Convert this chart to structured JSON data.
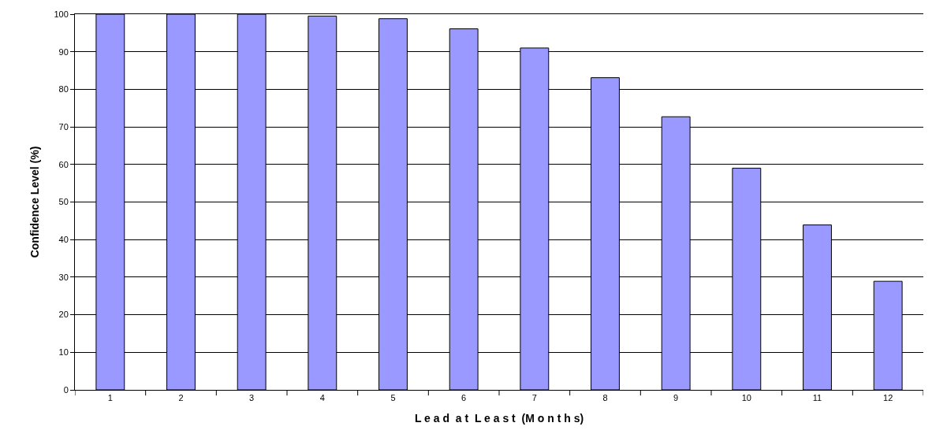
{
  "chart_data": {
    "type": "bar",
    "xlabel": "L e a d  a t  L e a s t  (M o n t h s)",
    "ylabel": "Confidence Level (%)",
    "categories": [
      "1",
      "2",
      "3",
      "4",
      "5",
      "6",
      "7",
      "8",
      "9",
      "10",
      "11",
      "12"
    ],
    "values": [
      100,
      100,
      100,
      99.5,
      98.8,
      96.1,
      91.0,
      83.1,
      72.7,
      59.0,
      43.9,
      28.9
    ],
    "color": "#9999ff",
    "ylim": [
      0,
      100
    ],
    "yticks": [
      0,
      10,
      20,
      30,
      40,
      50,
      60,
      70,
      80,
      90,
      100
    ],
    "grid": "y"
  }
}
